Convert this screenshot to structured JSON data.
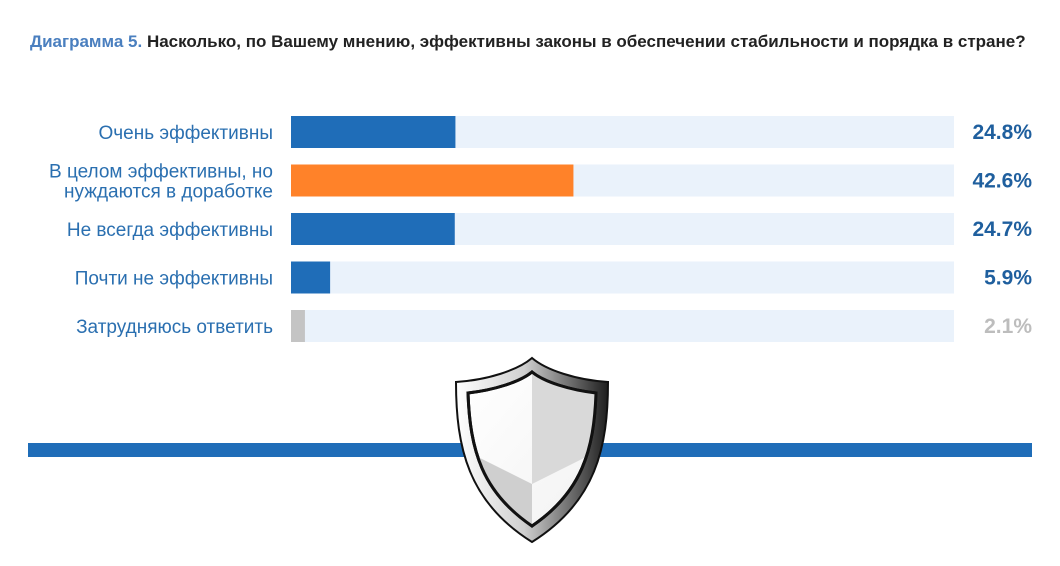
{
  "title": {
    "prefix": "Диаграмма 5.",
    "text": "Насколько, по Вашему мнению, эффективны законы в обеспечении стабильности и порядка в стране?"
  },
  "chart_data": {
    "type": "bar",
    "orientation": "horizontal",
    "title": "Диаграмма 5. Насколько, по Вашему мнению, эффективны законы в обеспечении стабильности и порядка в стране?",
    "categories": [
      [
        "Очень эффективны"
      ],
      [
        "В целом эффективны, но",
        "нуждаются в доработке"
      ],
      [
        "Не всегда эффективны"
      ],
      [
        "Почти не эффективны"
      ],
      [
        "Затрудняюсь ответить"
      ]
    ],
    "values": [
      24.8,
      42.6,
      24.7,
      5.9,
      2.1
    ],
    "value_labels": [
      "24.8%",
      "42.6%",
      "24.7%",
      "5.9%",
      "2.1%"
    ],
    "xlim": [
      0,
      100
    ],
    "unit": "%",
    "grid": false,
    "legend": "none",
    "colors": {
      "bars": [
        "#1f6db8",
        "#ff8229",
        "#1f6db8",
        "#1f6db8",
        "#c4c4c4"
      ],
      "value_text": [
        "#1f5f9e",
        "#1f5f9e",
        "#1f5f9e",
        "#1f5f9e",
        "#bdbdbd"
      ],
      "track": "#eaf2fb",
      "divider": "#1f6db8"
    }
  },
  "decoration": {
    "icon": "shield-icon"
  }
}
